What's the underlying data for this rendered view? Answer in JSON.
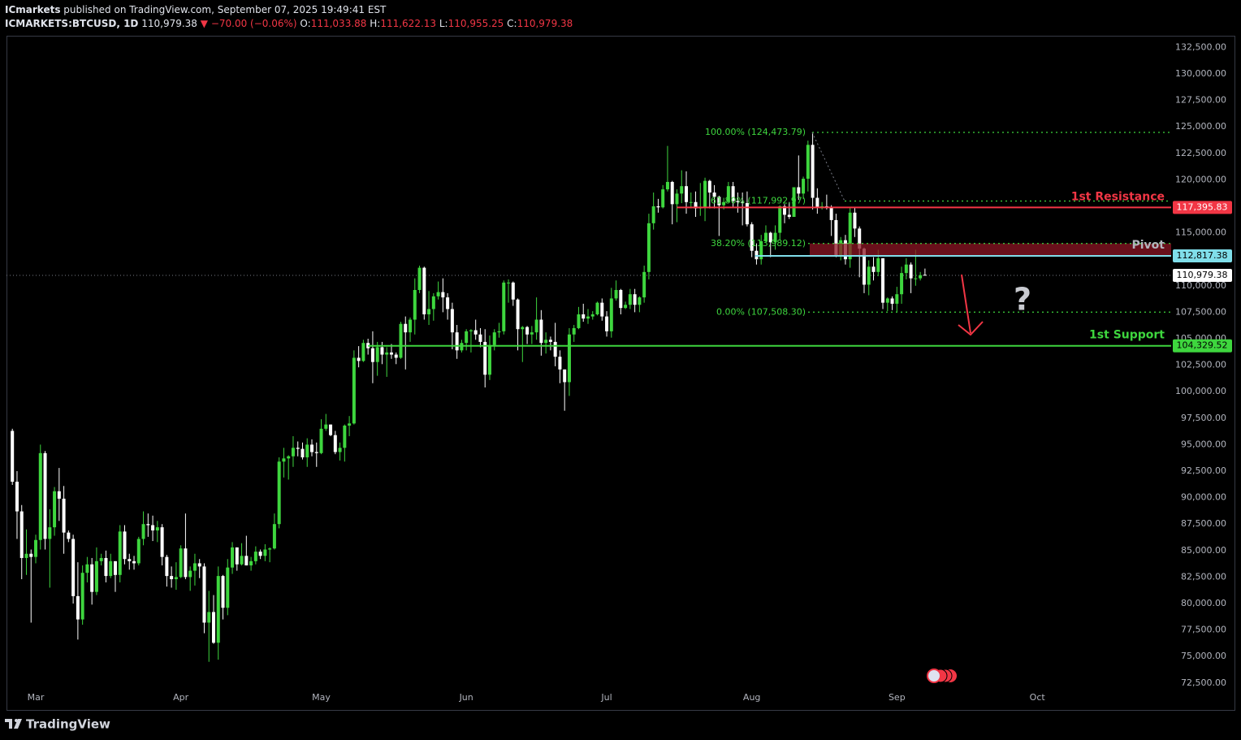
{
  "header": {
    "publisher": "ICmarkets",
    "published": "published on TradingView.com, September 07, 2025 19:49:41 EST",
    "symbol": "ICMARKETS:BTCUSD, 1D",
    "price": "110,979.38",
    "change": "▼ −70.00 (−0.06%)",
    "ohlc": [
      {
        "label": "O:",
        "value": "111,033.88"
      },
      {
        "label": "H:",
        "value": "111,622.13"
      },
      {
        "label": "L:",
        "value": "110,955.25"
      },
      {
        "label": "C:",
        "value": "110,979.38"
      }
    ]
  },
  "footer": {
    "brand": "TradingView"
  },
  "chart_data": {
    "type": "candlestick",
    "up_color": "#3ed63e",
    "down_color": "#ffffff",
    "grid": false,
    "xlim": [
      -1.25,
      247.6
    ],
    "ylim": [
      71950,
      133600
    ],
    "xticks": [
      {
        "value": 5,
        "label": "Mar"
      },
      {
        "value": 36,
        "label": "Apr"
      },
      {
        "value": 66,
        "label": "May"
      },
      {
        "value": 97,
        "label": "Jun"
      },
      {
        "value": 127,
        "label": "Jul"
      },
      {
        "value": 158,
        "label": "Aug"
      },
      {
        "value": 189,
        "label": "Sep"
      },
      {
        "value": 219,
        "label": "Oct"
      }
    ],
    "yticks": [
      {
        "value": 72500,
        "label": "72,500.00"
      },
      {
        "value": 75000,
        "label": "75,000.00"
      },
      {
        "value": 77500,
        "label": "77,500.00"
      },
      {
        "value": 80000,
        "label": "80,000.00"
      },
      {
        "value": 82500,
        "label": "82,500.00"
      },
      {
        "value": 85000,
        "label": "85,000.00"
      },
      {
        "value": 87500,
        "label": "87,500.00"
      },
      {
        "value": 90000,
        "label": "90,000.00"
      },
      {
        "value": 92500,
        "label": "92,500.00"
      },
      {
        "value": 95000,
        "label": "95,000.00"
      },
      {
        "value": 97500,
        "label": "97,500.00"
      },
      {
        "value": 100000,
        "label": "100,000.00"
      },
      {
        "value": 102500,
        "label": "102,500.00"
      },
      {
        "value": 105000,
        "label": "105,000.00"
      },
      {
        "value": 107500,
        "label": "107,500.00"
      },
      {
        "value": 110000,
        "label": "110,000.00"
      },
      {
        "value": 112500,
        "label": "112,500.00"
      },
      {
        "value": 115000,
        "label": "115,000.00"
      },
      {
        "value": 117500,
        "label": "117,500.00"
      },
      {
        "value": 120000,
        "label": "120,000.00"
      },
      {
        "value": 122500,
        "label": "122,500.00"
      },
      {
        "value": 125000,
        "label": "125,000.00"
      },
      {
        "value": 127500,
        "label": "127,500.00"
      },
      {
        "value": 130000,
        "label": "130,000.00"
      },
      {
        "value": 132500,
        "label": "132,500.00"
      }
    ],
    "last_price": {
      "value": 110979.38,
      "label": "110,979.38"
    },
    "levels": [
      {
        "name": "1st Resistance",
        "value": 117395.83,
        "value_label": "117,395.83",
        "color": "#f23645"
      },
      {
        "name": "Pivot",
        "value": 112817.38,
        "value_label": "112,817.38",
        "color": "#80deea"
      },
      {
        "name": "1st Support",
        "value": 104329.52,
        "value_label": "104,329.52",
        "color": "#3ed63e"
      }
    ],
    "fib_color": "#3ed63e",
    "fib_levels": [
      {
        "label": "100.00% (124,473.79)",
        "value": 124473.79
      },
      {
        "label": "61.80% (117,992.97)",
        "value": 117992.97
      },
      {
        "label": "38.20% (113,989.12)",
        "value": 113989.12
      },
      {
        "label": "0.00% (107,508.30)",
        "value": 107508.3
      }
    ],
    "annotation": "?",
    "ohlc": [
      [
        96300,
        96500,
        91200,
        91500
      ],
      [
        91500,
        92500,
        86100,
        88700
      ],
      [
        88700,
        89300,
        82300,
        84300
      ],
      [
        84300,
        87000,
        82700,
        84700
      ],
      [
        84700,
        85100,
        78200,
        84400
      ],
      [
        84400,
        86500,
        83800,
        86000
      ],
      [
        86000,
        95000,
        85100,
        94200
      ],
      [
        94200,
        94400,
        85100,
        86100
      ],
      [
        86100,
        88900,
        81500,
        87200
      ],
      [
        87200,
        91000,
        86400,
        90600
      ],
      [
        90600,
        92800,
        87800,
        89900
      ],
      [
        89900,
        91100,
        84700,
        86700
      ],
      [
        86700,
        86900,
        85800,
        86100
      ],
      [
        86100,
        86500,
        80000,
        80700
      ],
      [
        80700,
        83900,
        76600,
        78500
      ],
      [
        78500,
        83600,
        78000,
        82900
      ],
      [
        82900,
        84400,
        82000,
        83700
      ],
      [
        83700,
        84300,
        79900,
        81100
      ],
      [
        81100,
        85300,
        80800,
        84000
      ],
      [
        84000,
        84700,
        83600,
        84300
      ],
      [
        84300,
        85000,
        82000,
        82600
      ],
      [
        82600,
        84700,
        82400,
        84000
      ],
      [
        84000,
        84000,
        81100,
        82700
      ],
      [
        82700,
        87400,
        82000,
        86800
      ],
      [
        86800,
        87400,
        83700,
        84200
      ],
      [
        84200,
        84700,
        83200,
        84000
      ],
      [
        84000,
        84500,
        83200,
        83800
      ],
      [
        83800,
        86300,
        83600,
        86100
      ],
      [
        86100,
        88700,
        85500,
        87500
      ],
      [
        87500,
        88500,
        86300,
        87400
      ],
      [
        87400,
        88300,
        85900,
        86900
      ],
      [
        86900,
        87800,
        85800,
        87200
      ],
      [
        87200,
        87500,
        83600,
        84400
      ],
      [
        84400,
        84600,
        81600,
        82600
      ],
      [
        82600,
        83500,
        81500,
        82300
      ],
      [
        82300,
        83900,
        81300,
        82500
      ],
      [
        82500,
        85500,
        82400,
        85200
      ],
      [
        85200,
        88500,
        82300,
        82500
      ],
      [
        82500,
        83500,
        81200,
        83100
      ],
      [
        83100,
        84700,
        81700,
        83800
      ],
      [
        83800,
        84200,
        82400,
        83500
      ],
      [
        83500,
        83800,
        77200,
        78200
      ],
      [
        78200,
        81200,
        74500,
        79200
      ],
      [
        79200,
        80800,
        76200,
        76300
      ],
      [
        76300,
        83500,
        74700,
        82600
      ],
      [
        82600,
        82700,
        78500,
        79600
      ],
      [
        79600,
        84200,
        78900,
        83400
      ],
      [
        83400,
        85800,
        82800,
        85300
      ],
      [
        85300,
        85300,
        83100,
        83700
      ],
      [
        83700,
        85700,
        83600,
        84500
      ],
      [
        84500,
        86400,
        83600,
        83600
      ],
      [
        83600,
        84400,
        83100,
        84000
      ],
      [
        84000,
        85400,
        83700,
        84900
      ],
      [
        84900,
        85100,
        84200,
        84500
      ],
      [
        84500,
        85600,
        84000,
        85100
      ],
      [
        85100,
        85300,
        83900,
        85200
      ],
      [
        85200,
        88500,
        85100,
        87500
      ],
      [
        87500,
        93800,
        87100,
        93400
      ],
      [
        93400,
        94700,
        91900,
        93700
      ],
      [
        93700,
        94000,
        91700,
        93900
      ],
      [
        93900,
        95800,
        92900,
        94700
      ],
      [
        94700,
        95300,
        93900,
        94600
      ],
      [
        94600,
        95200,
        93600,
        93800
      ],
      [
        93800,
        95600,
        92900,
        95000
      ],
      [
        95000,
        95500,
        93900,
        94300
      ],
      [
        94300,
        95200,
        92900,
        94200
      ],
      [
        94200,
        97400,
        94100,
        96500
      ],
      [
        96500,
        97900,
        96300,
        96900
      ],
      [
        96900,
        96900,
        95800,
        95900
      ],
      [
        95900,
        96300,
        94100,
        94300
      ],
      [
        94300,
        95200,
        93500,
        94700
      ],
      [
        94700,
        96900,
        93400,
        96800
      ],
      [
        96800,
        97700,
        95800,
        97000
      ],
      [
        97000,
        103900,
        96900,
        103200
      ],
      [
        103200,
        104300,
        102300,
        102900
      ],
      [
        102900,
        104900,
        102800,
        104600
      ],
      [
        104600,
        105000,
        103500,
        104100
      ],
      [
        104100,
        105700,
        100800,
        102800
      ],
      [
        102800,
        104700,
        101500,
        104200
      ],
      [
        104200,
        104700,
        102600,
        103500
      ],
      [
        103500,
        104200,
        101400,
        103700
      ],
      [
        103700,
        104500,
        103100,
        103500
      ],
      [
        103500,
        103700,
        102600,
        103200
      ],
      [
        103200,
        106600,
        103100,
        106400
      ],
      [
        106400,
        107100,
        102100,
        105600
      ],
      [
        105600,
        107000,
        104700,
        106800
      ],
      [
        106800,
        110700,
        105400,
        109600
      ],
      [
        109600,
        111900,
        109300,
        111700
      ],
      [
        111700,
        111800,
        106800,
        107300
      ],
      [
        107300,
        109500,
        106300,
        107800
      ],
      [
        107800,
        109300,
        106700,
        109000
      ],
      [
        109000,
        110400,
        108700,
        109400
      ],
      [
        109400,
        110700,
        107500,
        108900
      ],
      [
        108900,
        109300,
        106800,
        107800
      ],
      [
        107800,
        108400,
        104000,
        105600
      ],
      [
        105600,
        106300,
        103100,
        103900
      ],
      [
        103900,
        104900,
        103700,
        104600
      ],
      [
        104600,
        105900,
        103900,
        105700
      ],
      [
        105700,
        105900,
        103700,
        105800
      ],
      [
        105800,
        106800,
        104900,
        105400
      ],
      [
        105400,
        106000,
        104200,
        104700
      ],
      [
        104700,
        105900,
        100400,
        101600
      ],
      [
        101600,
        105300,
        101100,
        104400
      ],
      [
        104400,
        105900,
        103900,
        105600
      ],
      [
        105600,
        106500,
        105100,
        105700
      ],
      [
        105700,
        110500,
        105400,
        110300
      ],
      [
        110300,
        110600,
        108400,
        110300
      ],
      [
        110300,
        110400,
        108100,
        108700
      ],
      [
        108700,
        108800,
        103900,
        105900
      ],
      [
        105900,
        106200,
        102800,
        106100
      ],
      [
        106100,
        106200,
        104500,
        105400
      ],
      [
        105400,
        106200,
        104500,
        105600
      ],
      [
        105600,
        108900,
        104900,
        106800
      ],
      [
        106800,
        107700,
        103400,
        104600
      ],
      [
        104600,
        105600,
        103600,
        104900
      ],
      [
        104900,
        105200,
        103900,
        104700
      ],
      [
        104700,
        106500,
        102400,
        103300
      ],
      [
        103300,
        103900,
        100800,
        102100
      ],
      [
        102100,
        102100,
        98200,
        100900
      ],
      [
        100900,
        106000,
        99600,
        105400
      ],
      [
        105400,
        106300,
        104700,
        106000
      ],
      [
        106000,
        108000,
        105900,
        107300
      ],
      [
        107300,
        108300,
        106600,
        106900
      ],
      [
        106900,
        107800,
        106400,
        107100
      ],
      [
        107100,
        107600,
        106800,
        107300
      ],
      [
        107300,
        108500,
        107200,
        108400
      ],
      [
        108400,
        108800,
        106700,
        107100
      ],
      [
        107100,
        107600,
        105200,
        105700
      ],
      [
        105700,
        109800,
        105100,
        108800
      ],
      [
        108800,
        110500,
        108600,
        109600
      ],
      [
        109600,
        109700,
        107300,
        107900
      ],
      [
        107900,
        108500,
        107800,
        108200
      ],
      [
        108200,
        109700,
        107800,
        109200
      ],
      [
        109200,
        109700,
        107500,
        108200
      ],
      [
        108200,
        109000,
        107500,
        108900
      ],
      [
        108900,
        111900,
        108400,
        111300
      ],
      [
        111300,
        116800,
        110600,
        115900
      ],
      [
        115900,
        118800,
        115300,
        117500
      ],
      [
        117500,
        118200,
        116900,
        117400
      ],
      [
        117400,
        119500,
        117300,
        119100
      ],
      [
        119100,
        123200,
        118900,
        119800
      ],
      [
        119800,
        119900,
        115800,
        117700
      ],
      [
        117700,
        119100,
        116000,
        118700
      ],
      [
        118700,
        120900,
        117800,
        119400
      ],
      [
        119400,
        120800,
        116800,
        117900
      ],
      [
        117900,
        118800,
        117300,
        117900
      ],
      [
        117900,
        118900,
        116500,
        117300
      ],
      [
        117300,
        119700,
        116600,
        117400
      ],
      [
        117400,
        120200,
        116100,
        119900
      ],
      [
        119900,
        120000,
        117300,
        118800
      ],
      [
        118800,
        119500,
        117300,
        118400
      ],
      [
        118400,
        118500,
        114700,
        117600
      ],
      [
        117600,
        118300,
        117200,
        117900
      ],
      [
        117900,
        119800,
        117900,
        119400
      ],
      [
        119400,
        119800,
        117400,
        118000
      ],
      [
        118000,
        118800,
        116900,
        117900
      ],
      [
        117900,
        118800,
        115700,
        117800
      ],
      [
        117800,
        118900,
        115600,
        115800
      ],
      [
        115800,
        116000,
        112700,
        113300
      ],
      [
        113300,
        114000,
        112000,
        112500
      ],
      [
        112500,
        114800,
        112000,
        114200
      ],
      [
        114200,
        115700,
        114100,
        115000
      ],
      [
        115000,
        115100,
        112700,
        114100
      ],
      [
        114100,
        115700,
        113400,
        115000
      ],
      [
        115000,
        117600,
        114300,
        117500
      ],
      [
        117500,
        117700,
        115900,
        116700
      ],
      [
        116700,
        117900,
        116300,
        116500
      ],
      [
        116500,
        119300,
        116500,
        119300
      ],
      [
        119300,
        122300,
        118100,
        118700
      ],
      [
        118700,
        120300,
        118200,
        120100
      ],
      [
        120100,
        123700,
        118900,
        123300
      ],
      [
        123300,
        124473.79,
        117200,
        118300
      ],
      [
        118300,
        119200,
        116800,
        117400
      ],
      [
        117400,
        117900,
        117200,
        117500
      ],
      [
        117500,
        118600,
        117200,
        117400
      ],
      [
        117400,
        117600,
        114700,
        116200
      ],
      [
        116200,
        116800,
        112700,
        112900
      ],
      [
        112900,
        114600,
        112400,
        114300
      ],
      [
        114300,
        114800,
        112000,
        112500
      ],
      [
        112500,
        117400,
        111700,
        116900
      ],
      [
        116900,
        117400,
        114600,
        115400
      ],
      [
        115400,
        115600,
        110800,
        113500
      ],
      [
        113500,
        113600,
        109300,
        110100
      ],
      [
        110100,
        112400,
        109100,
        111800
      ],
      [
        111800,
        112700,
        110500,
        111300
      ],
      [
        111300,
        113400,
        110900,
        112600
      ],
      [
        112600,
        112600,
        107800,
        108400
      ],
      [
        108400,
        108900,
        107600,
        108800
      ],
      [
        108800,
        109000,
        107700,
        108300
      ],
      [
        108300,
        109900,
        107508.3,
        109200
      ],
      [
        109200,
        111800,
        108300,
        111200
      ],
      [
        111200,
        112600,
        110600,
        112000
      ],
      [
        112000,
        112200,
        109300,
        110700
      ],
      [
        110700,
        113400,
        110000,
        110700
      ],
      [
        110700,
        111300,
        110500,
        111000
      ],
      [
        111033.88,
        111622.13,
        110955.25,
        110979.38
      ]
    ]
  }
}
